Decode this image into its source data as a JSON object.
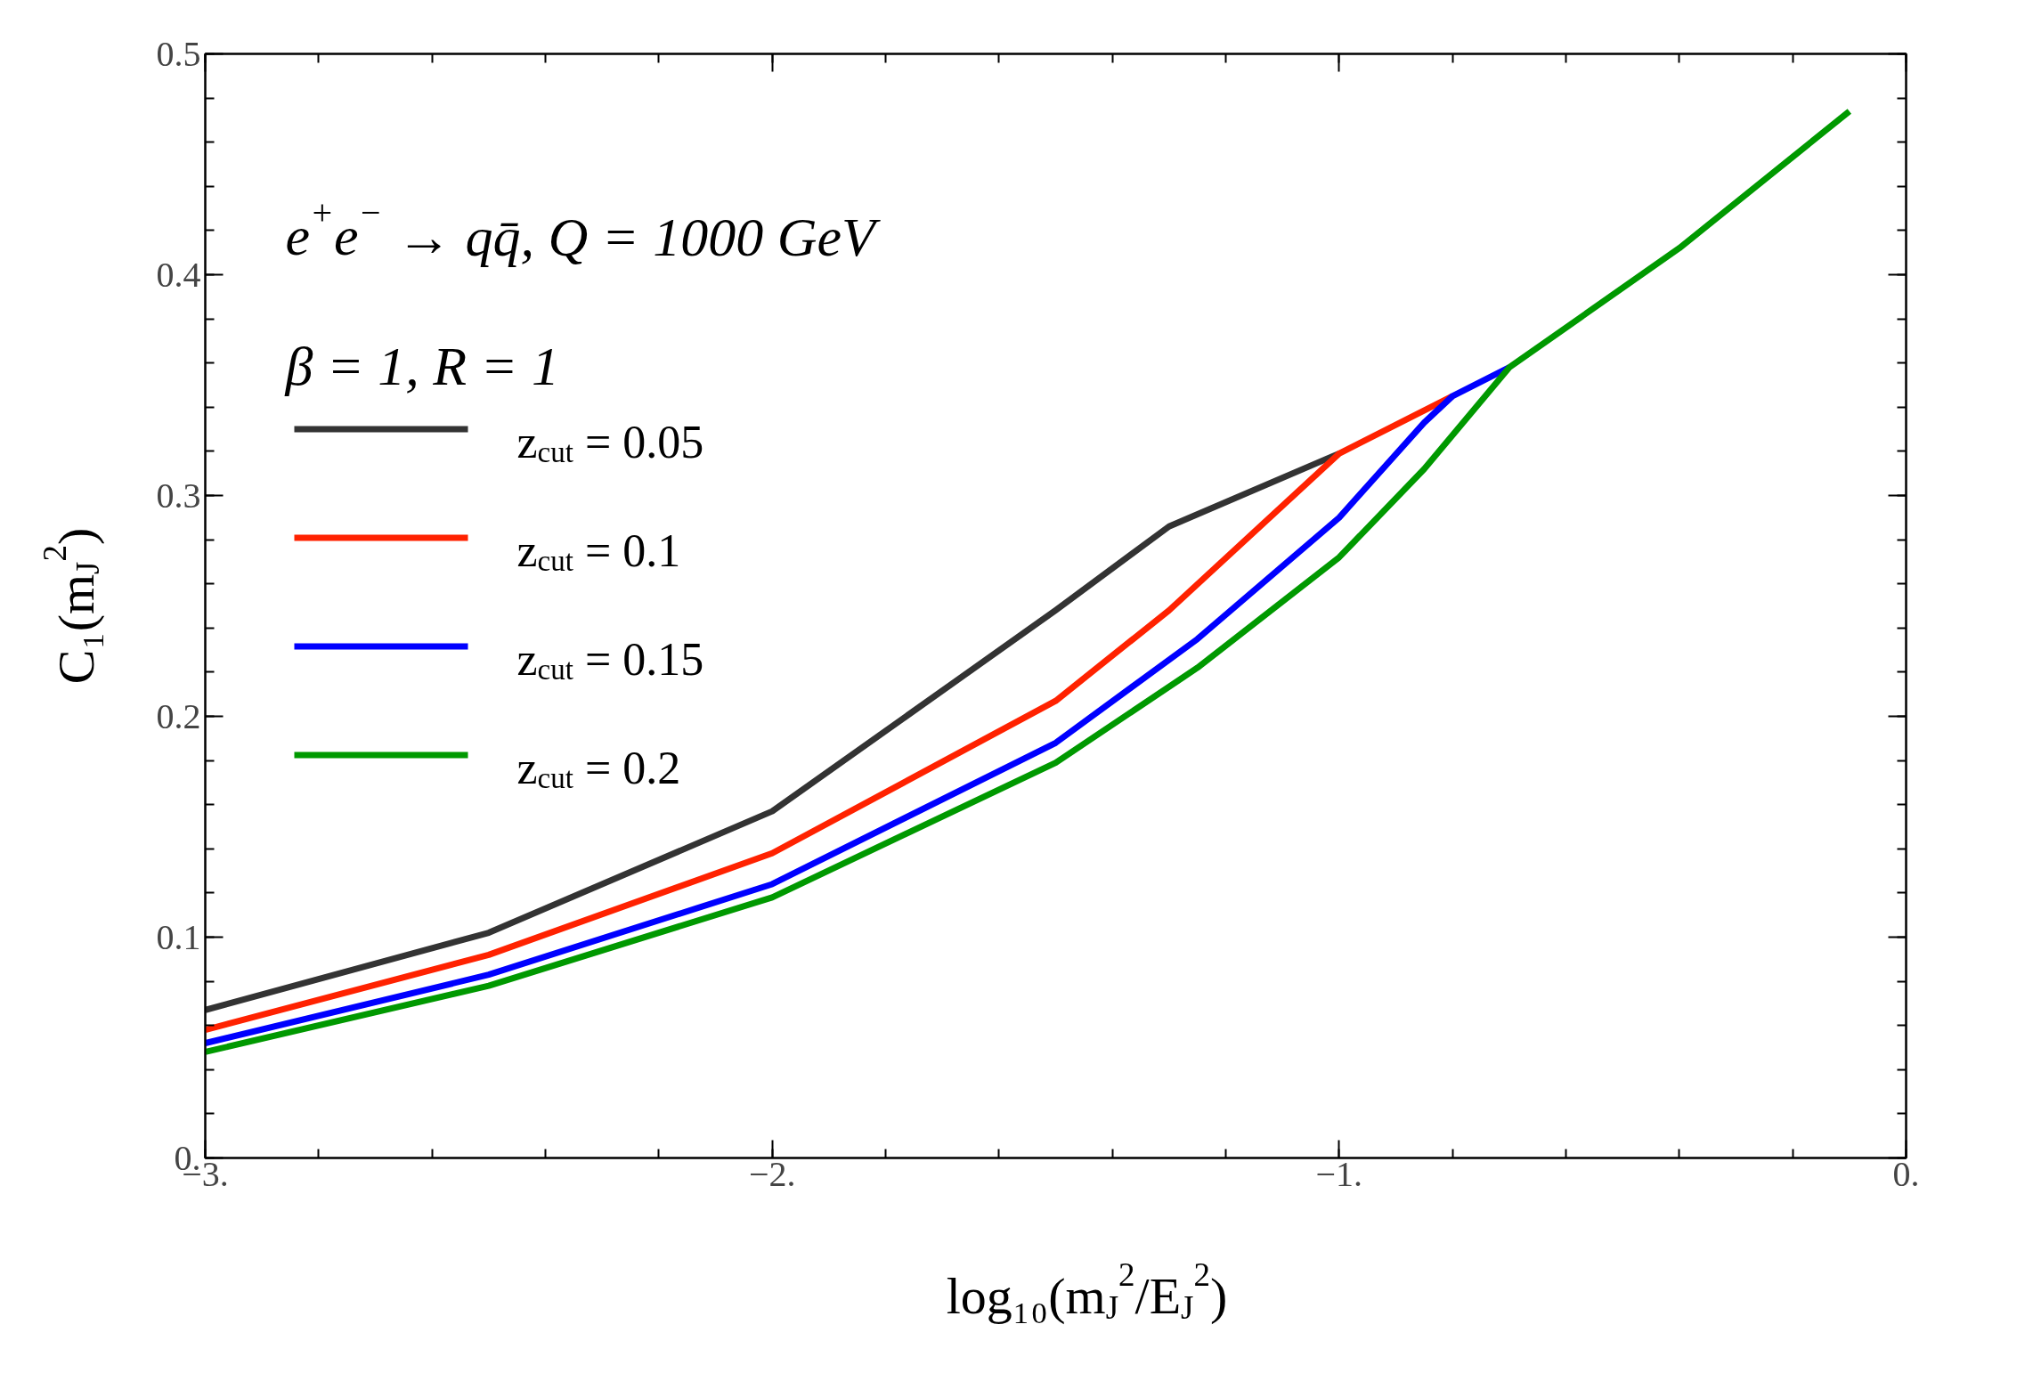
{
  "chart_data": {
    "type": "line",
    "xlabel": "log₁₀(m$_{J}$$^{2}$/E$_{J}$$^{2}$)",
    "ylabel": "C₁(m$_{J}$$^{2}$)",
    "annotations": [
      "e$^{+}$e$^{−}$ → qq̄,  Q = 1000 GeV",
      "β = 1,  R = 1"
    ],
    "series": [
      {
        "name": "z$_{cut}$ = 0.05",
        "color": "#333333",
        "x": [
          -3,
          -2.5,
          -2,
          -1.5,
          -1.3,
          -1.0
        ],
        "values": [
          0.067,
          0.102,
          0.157,
          0.248,
          0.286,
          0.319
        ]
      },
      {
        "name": "z$_{cut}$ = 0.1",
        "color": "#ff2200",
        "x": [
          -3,
          -2.5,
          -2,
          -1.5,
          -1.3,
          -1.0,
          -0.8
        ],
        "values": [
          0.058,
          0.092,
          0.138,
          0.207,
          0.248,
          0.319,
          0.345
        ]
      },
      {
        "name": "z$_{cut}$ = 0.15",
        "color": "#0000ff",
        "x": [
          -3,
          -2.5,
          -2,
          -1.5,
          -1.25,
          -1.0,
          -0.85,
          -0.8,
          -0.7
        ],
        "values": [
          0.052,
          0.083,
          0.124,
          0.188,
          0.235,
          0.29,
          0.333,
          0.345,
          0.358
        ]
      },
      {
        "name": "z$_{cut}$ = 0.2",
        "color": "#009900",
        "x": [
          -3,
          -2.5,
          -2,
          -1.5,
          -1.25,
          -1.0,
          -0.85,
          -0.7,
          -0.4,
          -0.1
        ],
        "values": [
          0.048,
          0.078,
          0.118,
          0.179,
          0.222,
          0.272,
          0.312,
          0.358,
          0.412,
          0.474
        ]
      }
    ],
    "xlim": [
      -3,
      0
    ],
    "ylim": [
      0,
      0.5
    ],
    "xticks": [
      {
        "value": -3,
        "label": "−3."
      },
      {
        "value": -2,
        "label": "−2."
      },
      {
        "value": -1,
        "label": "−1."
      },
      {
        "value": 0,
        "label": "0."
      }
    ],
    "yticks": [
      {
        "value": 0,
        "label": "0."
      },
      0.1,
      0.2,
      0.3,
      0.4,
      0.5
    ],
    "grid": false,
    "legend": "left",
    "line_style": "solid",
    "marker": "none"
  }
}
